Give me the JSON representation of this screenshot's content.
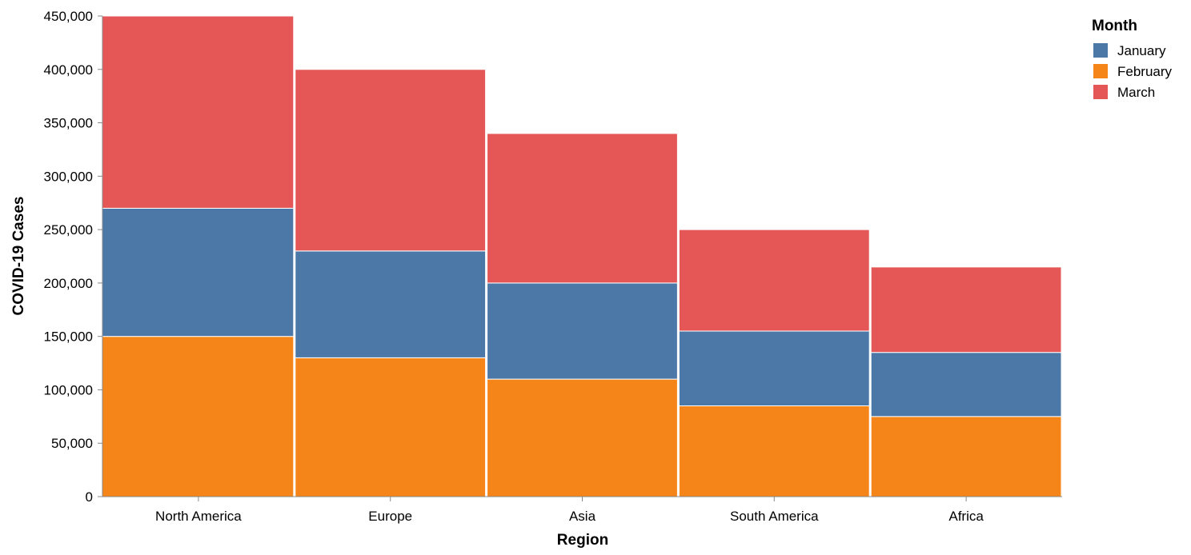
{
  "chart_data": {
    "type": "bar",
    "stacked": true,
    "title": "",
    "xlabel": "Region",
    "ylabel": "COVID-19 Cases",
    "categories": [
      "North America",
      "Europe",
      "Asia",
      "South America",
      "Africa"
    ],
    "series": [
      {
        "name": "February",
        "color": "#f58518",
        "values": [
          150000,
          130000,
          110000,
          85000,
          75000
        ]
      },
      {
        "name": "January",
        "color": "#4c78a8",
        "values": [
          120000,
          100000,
          90000,
          70000,
          60000
        ]
      },
      {
        "name": "March",
        "color": "#e45756",
        "values": [
          180000,
          170000,
          140000,
          95000,
          80000
        ]
      }
    ],
    "ylim": [
      0,
      450000
    ],
    "yticks": [
      0,
      50000,
      100000,
      150000,
      200000,
      250000,
      300000,
      350000,
      400000,
      450000
    ],
    "ytick_labels": [
      "0",
      "50,000",
      "100,000",
      "150,000",
      "200,000",
      "250,000",
      "300,000",
      "350,000",
      "400,000",
      "450,000"
    ],
    "grid": false,
    "legend": {
      "title": "Month",
      "placement": "top-right",
      "items": [
        {
          "label": "January",
          "color": "#4c78a8"
        },
        {
          "label": "February",
          "color": "#f58518"
        },
        {
          "label": "March",
          "color": "#e45756"
        }
      ]
    }
  }
}
